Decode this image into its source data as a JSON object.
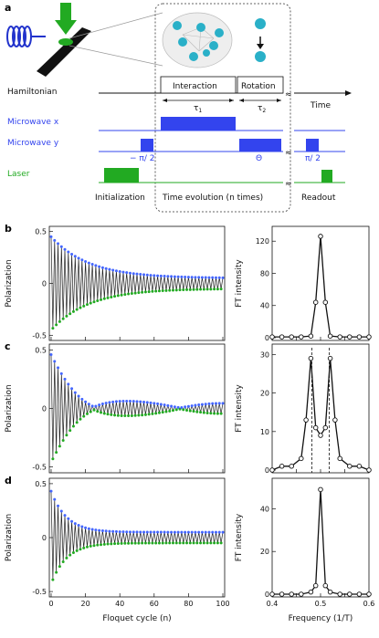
{
  "panels": {
    "a": "a",
    "b": "b",
    "c": "c",
    "d": "d"
  },
  "schematic": {
    "hamiltonian": "Hamiltonian",
    "interaction": "Interaction",
    "rotation": "Rotation",
    "time": "Time",
    "tau1": "τ",
    "tau1_sub": "1",
    "tau2": "τ",
    "tau2_sub": "2",
    "mw_x": "Microwave x",
    "mw_y": "Microwave y",
    "laser": "Laser",
    "minus_pi2": "− π/ 2",
    "theta": "Θ",
    "pi2": "π/ 2",
    "initialization": "Initialization",
    "evolution": "Time evolution (n times)",
    "readout": "Readout",
    "colors": {
      "blue": "#3344ee",
      "green": "#22aa22"
    }
  },
  "left_axes": {
    "ylabel": "Polarization",
    "xlabel": "Floquet cycle (n)",
    "yticks": [
      "0.5",
      "0",
      "-0.5"
    ],
    "xticks": [
      "0",
      "20",
      "40",
      "60",
      "80",
      "100"
    ]
  },
  "right_axes": {
    "ylabel": "FT intensity",
    "xlabel": "Frequency (1/T)",
    "xticks": [
      "0.4",
      "0.5",
      "0.6"
    ],
    "b_yticks": [
      "120",
      "80",
      "40",
      "0"
    ],
    "c_yticks": [
      "30",
      "20",
      "10",
      "0"
    ],
    "d_yticks": [
      "40",
      "20",
      "0"
    ]
  },
  "chart_data": [
    {
      "panel": "b",
      "type": "line",
      "x_range": [
        0,
        100
      ],
      "ylim": [
        -0.5,
        0.5
      ],
      "pattern": "period-2 oscillation decaying, symmetric envelope",
      "amplitude_start": 0.45,
      "amplitude_end": 0.05
    },
    {
      "panel": "b-ft",
      "type": "line",
      "x": [
        0.4,
        0.42,
        0.44,
        0.46,
        0.48,
        0.49,
        0.5,
        0.51,
        0.52,
        0.54,
        0.56,
        0.58,
        0.6
      ],
      "values": [
        1,
        1,
        1,
        1,
        2,
        44,
        126,
        44,
        2,
        1,
        1,
        1,
        1
      ],
      "ylim": [
        0,
        135
      ]
    },
    {
      "panel": "c",
      "type": "line",
      "x_range": [
        0,
        100
      ],
      "ylim": [
        -0.5,
        0.5
      ],
      "pattern": "period-2 oscillation with beating, revival near n=25"
    },
    {
      "panel": "c-ft",
      "type": "line",
      "x": [
        0.4,
        0.42,
        0.44,
        0.46,
        0.47,
        0.48,
        0.49,
        0.5,
        0.51,
        0.52,
        0.53,
        0.54,
        0.56,
        0.58,
        0.6
      ],
      "values": [
        0,
        1,
        1,
        3,
        13,
        29,
        11,
        9,
        11,
        29,
        13,
        3,
        1,
        1,
        0
      ],
      "ylim": [
        0,
        32
      ],
      "dashed_lines": [
        0.482,
        0.518
      ]
    },
    {
      "panel": "d",
      "type": "line",
      "x_range": [
        0,
        100
      ],
      "ylim": [
        -0.5,
        0.5
      ],
      "pattern": "period-2 oscillation, decays then persists ~0.05"
    },
    {
      "panel": "d-ft",
      "type": "line",
      "x": [
        0.4,
        0.42,
        0.44,
        0.46,
        0.48,
        0.49,
        0.5,
        0.51,
        0.52,
        0.54,
        0.56,
        0.58,
        0.6
      ],
      "values": [
        0,
        0,
        0,
        0,
        1,
        4,
        49,
        4,
        1,
        0,
        0,
        0,
        0
      ],
      "ylim": [
        0,
        53
      ]
    }
  ]
}
